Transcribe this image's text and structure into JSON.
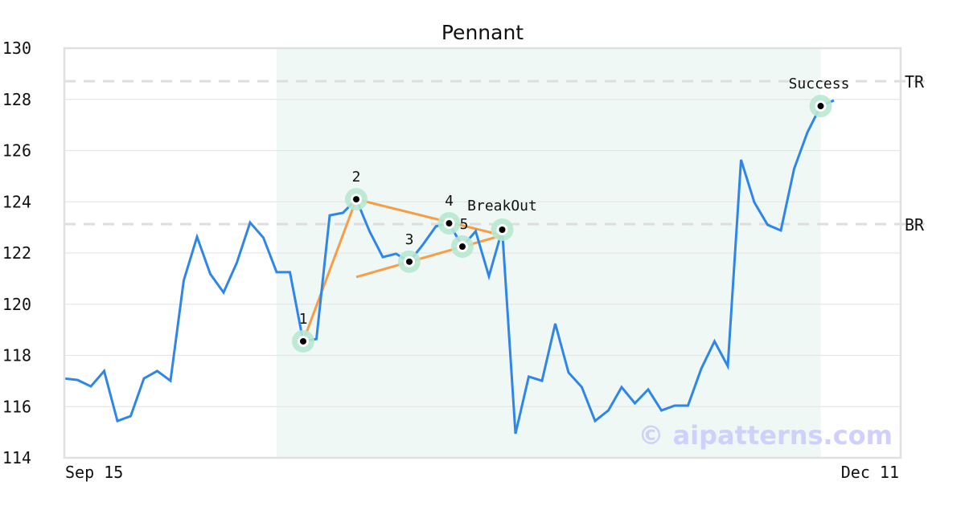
{
  "chart_data": {
    "type": "line",
    "title": "Pennant",
    "xlabel": "",
    "ylabel": "",
    "x_tick_labels": [
      "Sep 15",
      "Dec 11"
    ],
    "ylim": [
      114,
      130
    ],
    "y_ticks": [
      114,
      116,
      118,
      120,
      122,
      124,
      126,
      128,
      130
    ],
    "grid": true,
    "line_color": "#2e86e8",
    "trendline_color": "#f79d45",
    "highlight_color": "#eff8f4",
    "values": [
      117.1,
      117.04,
      116.79,
      117.39,
      115.44,
      115.63,
      117.1,
      117.39,
      117.01,
      120.93,
      122.63,
      121.18,
      120.46,
      121.62,
      123.19,
      122.6,
      121.25,
      121.25,
      118.55,
      118.64,
      123.47,
      123.57,
      124.1,
      122.85,
      121.84,
      121.97,
      121.66,
      122.31,
      123.04,
      123.16,
      122.25,
      122.85,
      121.09,
      122.91,
      114.94,
      117.17,
      117.01,
      119.24,
      117.33,
      116.76,
      115.44,
      115.85,
      116.76,
      116.13,
      116.67,
      115.85,
      116.04,
      116.04,
      117.48,
      118.55,
      117.58,
      125.64,
      123.98,
      123.1,
      122.88,
      125.29,
      126.71,
      127.74,
      127.96
    ],
    "highlight_range_index": [
      16,
      57
    ],
    "reference_lines": [
      {
        "label": "TR",
        "value": 128.71
      },
      {
        "label": "BR",
        "value": 123.13
      }
    ],
    "markers": [
      {
        "label": "1",
        "index": 18
      },
      {
        "label": "2",
        "index": 22
      },
      {
        "label": "3",
        "index": 26
      },
      {
        "label": "4",
        "index": 29
      },
      {
        "label": "5",
        "index": 30
      },
      {
        "label": "BreakOut",
        "index": 33
      },
      {
        "label": "Success",
        "index": 57
      }
    ],
    "trendlines": [
      {
        "from": [
          18,
          118.55
        ],
        "to": [
          22,
          124.1
        ]
      },
      {
        "from": [
          22,
          124.1
        ],
        "to": [
          33,
          122.69
        ]
      },
      {
        "from": [
          22,
          121.06
        ],
        "to": [
          33,
          122.69
        ]
      }
    ],
    "watermark": "© aipatterns.com"
  }
}
